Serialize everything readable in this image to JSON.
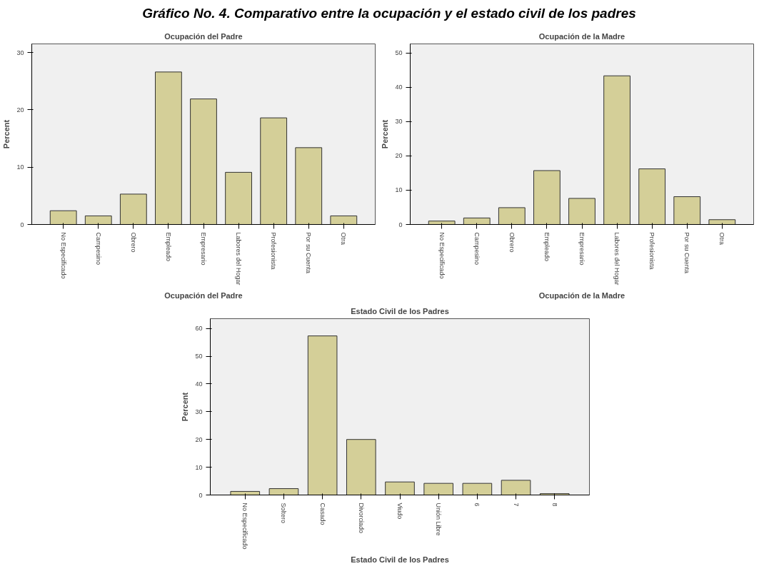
{
  "chart_data": [
    {
      "type": "bar",
      "title": "Ocupación del Padre",
      "xlabel": "Ocupación del Padre",
      "ylabel": "Percent",
      "annotations": [
        "Gráfico No. 4. Comparativo entre la ocupación y el estado civil de los padres"
      ],
      "categories": [
        "No Especificado",
        "Campesino",
        "Obrero",
        "Empleado",
        "Empresario",
        "Labores del Hogar",
        "Profesionista",
        "Por su Cuenta",
        "Otra"
      ],
      "values": [
        2.4,
        1.5,
        5.3,
        26.6,
        21.9,
        9.1,
        18.6,
        13.4,
        1.5
      ],
      "color": "#d4cf98",
      "ylim": [
        0,
        31.5
      ],
      "yticks": [
        0,
        10,
        20,
        30
      ]
    },
    {
      "type": "bar",
      "title": "Ocupación de la Madre",
      "xlabel": "Ocupación de la Madre",
      "ylabel": "Percent",
      "categories": [
        "No Especificado",
        "Campesino",
        "Obrero",
        "Empleado",
        "Empresario",
        "Labores del Hogar",
        "Profesionista",
        "Por su Cuenta",
        "Otra"
      ],
      "values": [
        1.0,
        1.9,
        4.9,
        15.7,
        7.6,
        43.3,
        16.2,
        8.1,
        1.4
      ],
      "color": "#d4cf98",
      "ylim": [
        0,
        52.6
      ],
      "yticks": [
        0,
        10,
        20,
        30,
        40,
        50
      ]
    },
    {
      "type": "bar",
      "title": "Estado Civil de los Padres",
      "xlabel": "Estado Civil de los Padres",
      "ylabel": "Percent",
      "categories": [
        "No Especificado",
        "Soltero",
        "Casado",
        "Divorciado",
        "Viudo",
        "Unión Libre",
        "6",
        "7",
        "8"
      ],
      "values": [
        1.3,
        2.3,
        57.3,
        20.0,
        4.7,
        4.2,
        4.2,
        5.3,
        0.5
      ],
      "color": "#d4cf98",
      "ylim": [
        0,
        63.5
      ],
      "yticks": [
        0,
        10,
        20,
        30,
        40,
        50,
        60
      ]
    }
  ]
}
